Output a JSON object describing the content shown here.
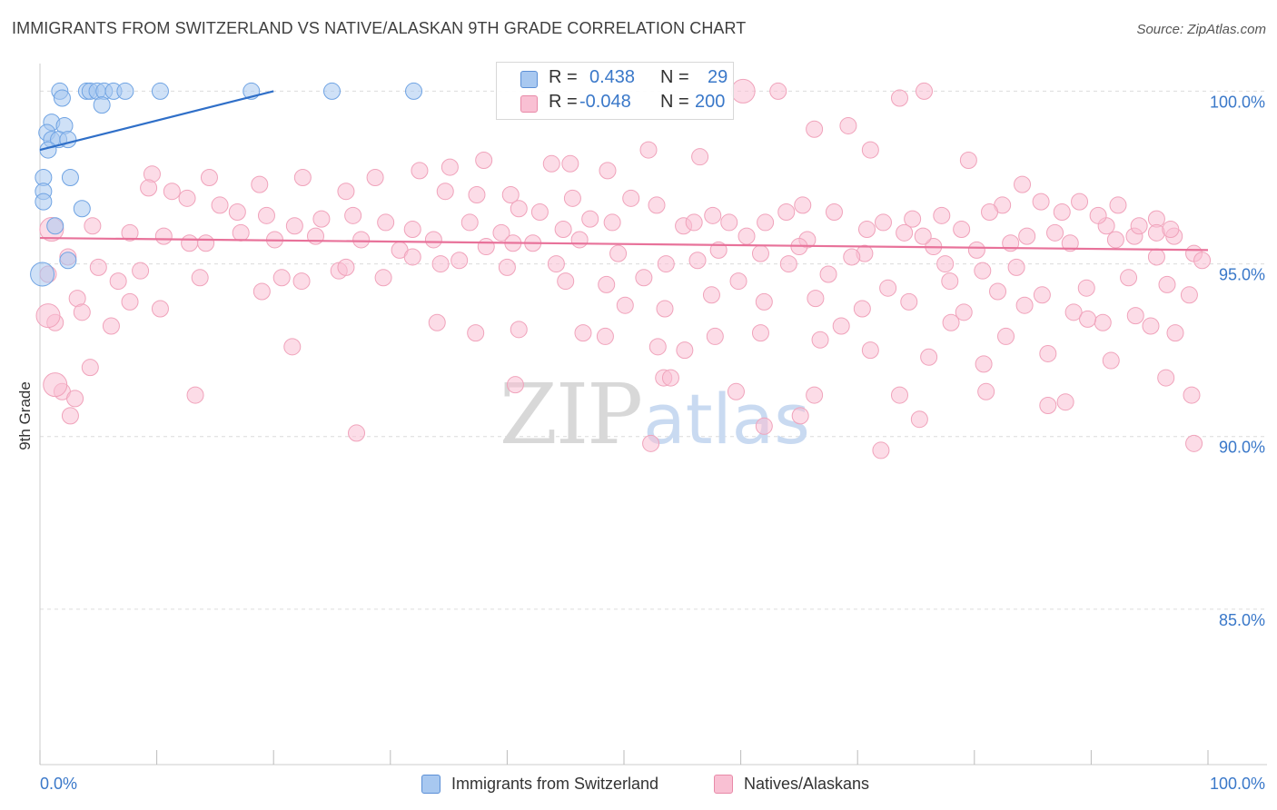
{
  "title": "IMMIGRANTS FROM SWITZERLAND VS NATIVE/ALASKAN 9TH GRADE CORRELATION CHART",
  "source": "Source: ZipAtlas.com",
  "watermark": {
    "zip": "ZIP",
    "atlas": "atlas"
  },
  "legend": {
    "r_label": "R =",
    "n_label": "N =",
    "rows": [
      {
        "r": "0.438",
        "n": "29",
        "color": "#a8c8f0",
        "border": "#5b8fd6"
      },
      {
        "r": "-0.048",
        "n": "200",
        "color": "#f9c0d3",
        "border": "#e88aa8"
      }
    ]
  },
  "bottom_legend": [
    {
      "label": "Immigrants from Switzerland",
      "color": "#a8c8f0",
      "border": "#5b8fd6"
    },
    {
      "label": "Natives/Alaskans",
      "color": "#f9c0d3",
      "border": "#e88aa8"
    }
  ],
  "chart_data": {
    "type": "scatter",
    "title": "IMMIGRANTS FROM SWITZERLAND VS NATIVE/ALASKAN 9TH GRADE CORRELATION CHART",
    "xlabel": "",
    "ylabel": "9th Grade",
    "xlim": [
      0,
      100
    ],
    "ylim": [
      80.5,
      100.8
    ],
    "x_tick_labels": [
      "0.0%",
      "100.0%"
    ],
    "y_ticks": [
      85,
      90,
      95,
      100
    ],
    "y_tick_labels": [
      "85.0%",
      "90.0%",
      "95.0%",
      "100.0%"
    ],
    "grid": true,
    "legend_position": "top-center",
    "series": [
      {
        "name": "Immigrants from Switzerland",
        "color": "#6fa3e3",
        "fill": "#a8c8f0",
        "trend": {
          "x": [
            0,
            20
          ],
          "y": [
            98.3,
            100.0
          ],
          "color": "#2f6fc8"
        },
        "points": [
          [
            1.7,
            100.0
          ],
          [
            4.0,
            100.0
          ],
          [
            4.3,
            100.0
          ],
          [
            4.9,
            100.0
          ],
          [
            5.5,
            100.0
          ],
          [
            6.3,
            100.0
          ],
          [
            7.3,
            100.0
          ],
          [
            10.3,
            100.0
          ],
          [
            18.1,
            100.0
          ],
          [
            25.0,
            100.0
          ],
          [
            32.0,
            100.0
          ],
          [
            1.9,
            99.8
          ],
          [
            5.3,
            99.6
          ],
          [
            1.0,
            99.1
          ],
          [
            2.1,
            99.0
          ],
          [
            0.6,
            98.8
          ],
          [
            1.0,
            98.6
          ],
          [
            1.6,
            98.6
          ],
          [
            2.4,
            98.6
          ],
          [
            0.7,
            98.3
          ],
          [
            0.3,
            97.5
          ],
          [
            2.6,
            97.5
          ],
          [
            0.3,
            97.1
          ],
          [
            0.3,
            96.8
          ],
          [
            3.6,
            96.6
          ],
          [
            1.3,
            96.1
          ],
          [
            2.4,
            95.1
          ],
          [
            0.2,
            94.7
          ]
        ],
        "big_points": [
          [
            0.2,
            94.7
          ]
        ]
      },
      {
        "name": "Natives/Alaskans",
        "color": "#f0a3bb",
        "fill": "#f9c0d3",
        "trend": {
          "x": [
            0,
            100
          ],
          "y": [
            95.75,
            95.4
          ],
          "color": "#e8729a"
        },
        "points": [
          [
            60.2,
            100.0
          ],
          [
            75.7,
            100.0
          ],
          [
            63.2,
            100.0
          ],
          [
            73.6,
            99.8
          ],
          [
            69.2,
            99.0
          ],
          [
            66.3,
            98.9
          ],
          [
            71.1,
            98.3
          ],
          [
            79.5,
            98.0
          ],
          [
            56.5,
            98.1
          ],
          [
            52.1,
            98.3
          ],
          [
            38.0,
            98.0
          ],
          [
            43.8,
            97.9
          ],
          [
            45.4,
            97.9
          ],
          [
            35.1,
            97.8
          ],
          [
            32.5,
            97.7
          ],
          [
            48.6,
            97.7
          ],
          [
            28.7,
            97.5
          ],
          [
            22.5,
            97.5
          ],
          [
            14.5,
            97.5
          ],
          [
            9.6,
            97.6
          ],
          [
            18.8,
            97.3
          ],
          [
            26.2,
            97.1
          ],
          [
            34.7,
            97.1
          ],
          [
            37.4,
            97.0
          ],
          [
            40.3,
            97.0
          ],
          [
            45.6,
            96.9
          ],
          [
            41.0,
            96.6
          ],
          [
            49.0,
            96.2
          ],
          [
            57.6,
            96.4
          ],
          [
            63.9,
            96.5
          ],
          [
            70.8,
            96.0
          ],
          [
            74.7,
            96.3
          ],
          [
            77.2,
            96.4
          ],
          [
            82.4,
            96.7
          ],
          [
            84.1,
            97.3
          ],
          [
            89.0,
            96.8
          ],
          [
            92.3,
            96.7
          ],
          [
            95.6,
            96.3
          ],
          [
            97.1,
            95.8
          ],
          [
            98.8,
            95.3
          ],
          [
            95.6,
            95.9
          ],
          [
            93.7,
            95.8
          ],
          [
            91.3,
            96.1
          ],
          [
            88.2,
            95.6
          ],
          [
            84.5,
            95.8
          ],
          [
            83.6,
            94.9
          ],
          [
            80.7,
            94.8
          ],
          [
            76.5,
            95.5
          ],
          [
            70.6,
            95.3
          ],
          [
            65.7,
            95.7
          ],
          [
            61.7,
            95.3
          ],
          [
            58.1,
            95.4
          ],
          [
            53.6,
            95.0
          ],
          [
            49.5,
            95.3
          ],
          [
            46.2,
            95.7
          ],
          [
            42.2,
            95.6
          ],
          [
            38.2,
            95.5
          ],
          [
            34.3,
            95.0
          ],
          [
            30.8,
            95.4
          ],
          [
            27.5,
            95.7
          ],
          [
            23.6,
            95.8
          ],
          [
            20.1,
            95.7
          ],
          [
            17.2,
            95.9
          ],
          [
            14.2,
            95.6
          ],
          [
            10.6,
            95.8
          ],
          [
            7.7,
            95.9
          ],
          [
            4.5,
            96.1
          ],
          [
            2.4,
            95.2
          ],
          [
            1.0,
            96.0
          ],
          [
            0.7,
            94.7
          ],
          [
            1.3,
            93.3
          ],
          [
            4.3,
            92.0
          ],
          [
            1.9,
            91.3
          ],
          [
            3.0,
            91.1
          ],
          [
            2.6,
            90.6
          ],
          [
            9.3,
            97.2
          ],
          [
            11.3,
            97.1
          ],
          [
            12.6,
            96.9
          ],
          [
            15.4,
            96.7
          ],
          [
            16.9,
            96.5
          ],
          [
            19.4,
            96.4
          ],
          [
            21.8,
            96.1
          ],
          [
            24.1,
            96.3
          ],
          [
            26.8,
            96.4
          ],
          [
            29.6,
            96.2
          ],
          [
            31.9,
            96.0
          ],
          [
            33.7,
            95.7
          ],
          [
            36.8,
            96.2
          ],
          [
            39.5,
            95.9
          ],
          [
            42.8,
            96.5
          ],
          [
            44.8,
            96.0
          ],
          [
            47.1,
            96.3
          ],
          [
            50.6,
            96.9
          ],
          [
            52.8,
            96.7
          ],
          [
            55.1,
            96.1
          ],
          [
            59.0,
            96.2
          ],
          [
            62.1,
            96.2
          ],
          [
            65.3,
            96.7
          ],
          [
            68.0,
            96.5
          ],
          [
            72.2,
            96.2
          ],
          [
            75.6,
            95.8
          ],
          [
            78.9,
            96.0
          ],
          [
            81.3,
            96.5
          ],
          [
            85.7,
            96.8
          ],
          [
            87.5,
            96.5
          ],
          [
            90.6,
            96.4
          ],
          [
            94.1,
            96.1
          ],
          [
            96.8,
            96.0
          ],
          [
            99.5,
            95.1
          ],
          [
            5.0,
            94.9
          ],
          [
            6.7,
            94.5
          ],
          [
            7.7,
            93.9
          ],
          [
            8.6,
            94.8
          ],
          [
            12.8,
            95.6
          ],
          [
            20.7,
            94.6
          ],
          [
            25.6,
            94.8
          ],
          [
            29.4,
            94.6
          ],
          [
            35.9,
            95.1
          ],
          [
            40.0,
            94.9
          ],
          [
            44.2,
            95.0
          ],
          [
            48.5,
            94.4
          ],
          [
            51.7,
            94.6
          ],
          [
            56.3,
            95.1
          ],
          [
            59.8,
            94.5
          ],
          [
            64.1,
            95.0
          ],
          [
            67.5,
            94.7
          ],
          [
            72.6,
            94.3
          ],
          [
            77.9,
            94.5
          ],
          [
            82.0,
            94.2
          ],
          [
            85.8,
            94.1
          ],
          [
            89.6,
            94.3
          ],
          [
            93.2,
            94.6
          ],
          [
            96.5,
            94.4
          ],
          [
            98.4,
            94.1
          ],
          [
            22.4,
            94.5
          ],
          [
            26.2,
            94.9
          ],
          [
            31.9,
            95.2
          ],
          [
            40.5,
            95.6
          ],
          [
            45.0,
            94.5
          ],
          [
            50.1,
            93.8
          ],
          [
            53.5,
            93.7
          ],
          [
            57.5,
            94.1
          ],
          [
            62.0,
            93.9
          ],
          [
            66.4,
            94.0
          ],
          [
            70.4,
            93.7
          ],
          [
            74.4,
            93.9
          ],
          [
            79.1,
            93.6
          ],
          [
            84.3,
            93.8
          ],
          [
            88.5,
            93.6
          ],
          [
            91.0,
            93.3
          ],
          [
            93.8,
            93.5
          ],
          [
            95.1,
            93.2
          ],
          [
            97.2,
            93.0
          ],
          [
            41.0,
            93.1
          ],
          [
            46.5,
            93.0
          ],
          [
            48.4,
            92.9
          ],
          [
            52.9,
            92.6
          ],
          [
            57.8,
            92.9
          ],
          [
            61.7,
            93.0
          ],
          [
            66.8,
            92.8
          ],
          [
            71.1,
            92.5
          ],
          [
            76.1,
            92.3
          ],
          [
            80.8,
            92.1
          ],
          [
            86.3,
            92.4
          ],
          [
            91.7,
            92.2
          ],
          [
            96.4,
            91.7
          ],
          [
            98.6,
            91.2
          ],
          [
            21.6,
            92.6
          ],
          [
            40.7,
            91.5
          ],
          [
            53.4,
            91.7
          ],
          [
            54.0,
            91.7
          ],
          [
            59.6,
            91.3
          ],
          [
            66.3,
            91.2
          ],
          [
            73.6,
            91.2
          ],
          [
            81.0,
            91.3
          ],
          [
            86.3,
            90.9
          ],
          [
            75.3,
            90.5
          ],
          [
            52.3,
            89.8
          ],
          [
            62.0,
            90.3
          ],
          [
            65.1,
            90.6
          ],
          [
            27.1,
            90.1
          ],
          [
            98.8,
            89.8
          ],
          [
            13.3,
            91.2
          ],
          [
            87.8,
            91.0
          ],
          [
            72.0,
            89.6
          ],
          [
            3.2,
            94.0
          ],
          [
            3.6,
            93.6
          ],
          [
            6.1,
            93.2
          ],
          [
            10.3,
            93.7
          ],
          [
            13.7,
            94.6
          ],
          [
            19.0,
            94.2
          ],
          [
            34.0,
            93.3
          ],
          [
            37.3,
            93.0
          ],
          [
            55.2,
            92.5
          ],
          [
            68.6,
            93.2
          ],
          [
            78.0,
            93.3
          ],
          [
            82.7,
            92.9
          ],
          [
            89.7,
            93.4
          ],
          [
            95.6,
            95.2
          ],
          [
            92.1,
            95.7
          ],
          [
            86.9,
            95.9
          ],
          [
            83.1,
            95.6
          ],
          [
            80.2,
            95.4
          ],
          [
            77.5,
            95.0
          ],
          [
            74.0,
            95.9
          ],
          [
            69.5,
            95.2
          ],
          [
            65.0,
            95.5
          ],
          [
            60.5,
            95.8
          ],
          [
            56.0,
            96.2
          ]
        ],
        "big_points": [
          [
            0.7,
            93.5
          ],
          [
            1.0,
            96.0
          ],
          [
            60.2,
            100.0
          ],
          [
            1.3,
            91.5
          ]
        ]
      }
    ]
  }
}
